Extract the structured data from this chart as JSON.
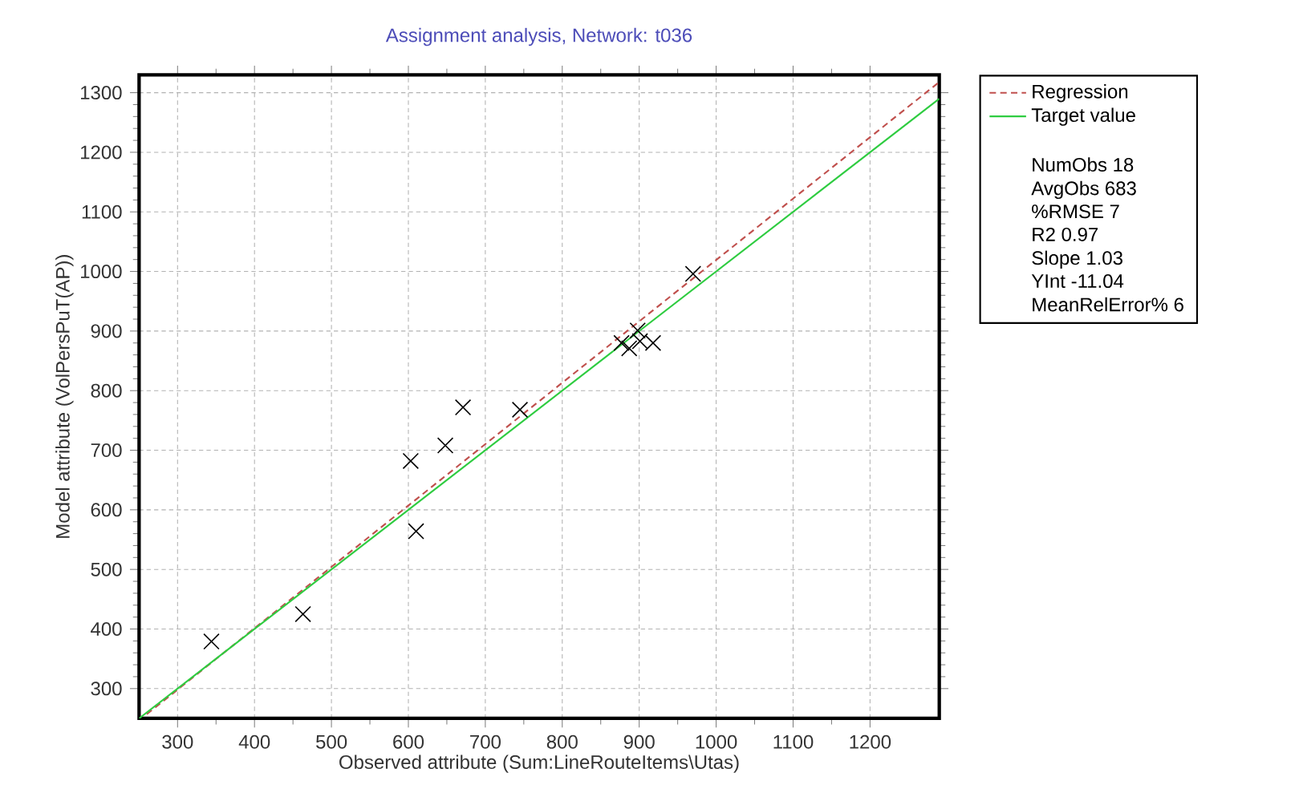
{
  "chart_data": {
    "type": "scatter",
    "title": "Assignment analysis, Network: t036",
    "xlabel": "Observed attribute (Sum:LineRouteItems\\Utas)",
    "ylabel": "Model attribute (VolPersPuT(AP))",
    "xlim": [
      250,
      1290
    ],
    "ylim": [
      250,
      1330
    ],
    "xticks": [
      300,
      400,
      500,
      600,
      700,
      800,
      900,
      1000,
      1100,
      1200
    ],
    "yticks": [
      300,
      400,
      500,
      600,
      700,
      800,
      900,
      1000,
      1100,
      1200,
      1300
    ],
    "grid": true,
    "legend": "right",
    "marker": "cross",
    "series": [
      {
        "color": "#000000",
        "x": [
          344,
          463,
          603,
          610,
          648,
          671,
          745,
          877,
          887,
          898,
          901,
          918,
          970
        ],
        "values": [
          379,
          425,
          682,
          564,
          708,
          772,
          768,
          880,
          871,
          901,
          883,
          880,
          996
        ]
      },
      {
        "name": "Regression",
        "type": "line",
        "color": "#c0504d",
        "line_style": "dashed",
        "marker": "none",
        "x": [
          260,
          1290
        ],
        "values": [
          257,
          1318
        ]
      },
      {
        "name": "Target value",
        "type": "line",
        "color": "#2ecc40",
        "line_style": "solid",
        "marker": "none",
        "x": [
          250,
          1290
        ],
        "values": [
          250,
          1290
        ]
      }
    ],
    "annotations": [
      "NumObs 18",
      "AvgObs 683",
      "%RMSE 7",
      "R2 0.97",
      "Slope 1.03",
      "YInt -11.04",
      "MeanRelError% 6"
    ]
  }
}
